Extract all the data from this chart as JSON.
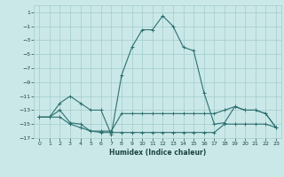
{
  "xlabel": "Humidex (Indice chaleur)",
  "bg_color": "#cbe8e8",
  "grid_color": "#a0cccc",
  "line_color": "#2d7070",
  "xlim": [
    -0.5,
    23.5
  ],
  "ylim": [
    -17,
    2
  ],
  "yticks": [
    1,
    -1,
    -3,
    -5,
    -7,
    -9,
    -11,
    -13,
    -15,
    -17
  ],
  "xticks": [
    0,
    1,
    2,
    3,
    4,
    5,
    6,
    7,
    8,
    9,
    10,
    11,
    12,
    13,
    14,
    15,
    16,
    17,
    18,
    19,
    20,
    21,
    22,
    23
  ],
  "series": [
    {
      "x": [
        0,
        1,
        2,
        3,
        4,
        5,
        6,
        7,
        8,
        9,
        10,
        11,
        12,
        13,
        14,
        15,
        16,
        17,
        18,
        19,
        20,
        21,
        22,
        23
      ],
      "y": [
        -14,
        -14,
        -14,
        -15,
        -15.5,
        -16,
        -16.2,
        -16.2,
        -16.2,
        -16.2,
        -16.2,
        -16.2,
        -16.2,
        -16.2,
        -16.2,
        -16.2,
        -16.2,
        -16.2,
        -15,
        -15,
        -15,
        -15,
        -15,
        -15.5
      ]
    },
    {
      "x": [
        0,
        1,
        2,
        3,
        4,
        5,
        6,
        7,
        8,
        9,
        10,
        11,
        12,
        13,
        14,
        15,
        16,
        17,
        18,
        19,
        20,
        21,
        22,
        23
      ],
      "y": [
        -14,
        -14,
        -13,
        -14.8,
        -15,
        -16,
        -16,
        -16,
        -13.5,
        -13.5,
        -13.5,
        -13.5,
        -13.5,
        -13.5,
        -13.5,
        -13.5,
        -13.5,
        -13.5,
        -13,
        -12.5,
        -13,
        -13,
        -13.5,
        -15.5
      ]
    },
    {
      "x": [
        0,
        1,
        2,
        3,
        4,
        5,
        6,
        7,
        8,
        9,
        10,
        11,
        12,
        13,
        14,
        15,
        16,
        17,
        18,
        19,
        20,
        21,
        22,
        23
      ],
      "y": [
        -14,
        -14,
        -12,
        -11,
        -12,
        -13,
        -13,
        -16.5,
        -8,
        -4,
        -1.5,
        -1.5,
        0.5,
        -1,
        -4,
        -4.5,
        -10.5,
        -15,
        -14.8,
        -12.5,
        -13,
        -13,
        -13.5,
        -15.5
      ]
    }
  ]
}
